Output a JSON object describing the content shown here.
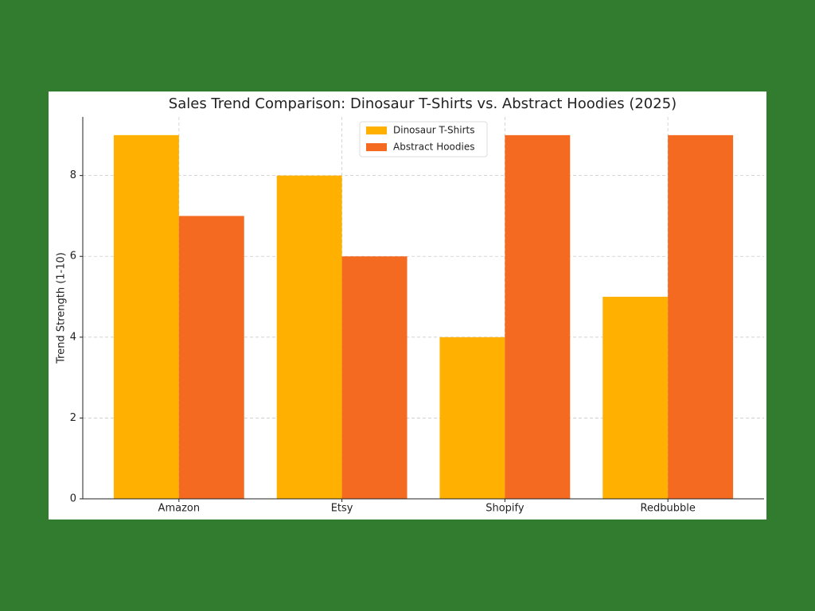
{
  "chart_data": {
    "type": "bar",
    "title": "Sales Trend Comparison: Dinosaur T-Shirts vs. Abstract Hoodies (2025)",
    "y_label": "Trend Strength (1-10)",
    "categories": [
      "Amazon",
      "Etsy",
      "Shopify",
      "Redbubble"
    ],
    "series": [
      {
        "name": "Dinosaur T-Shirts",
        "color": "#ffb000",
        "values": [
          9,
          8,
          4,
          5
        ]
      },
      {
        "name": "Abstract Hoodies",
        "color": "#f46a21",
        "values": [
          7,
          6,
          9,
          9
        ]
      }
    ],
    "ylim": [
      0,
      9.45
    ],
    "yticks": [
      0,
      2,
      4,
      6,
      8
    ],
    "grid": true,
    "legend": "upper center"
  }
}
